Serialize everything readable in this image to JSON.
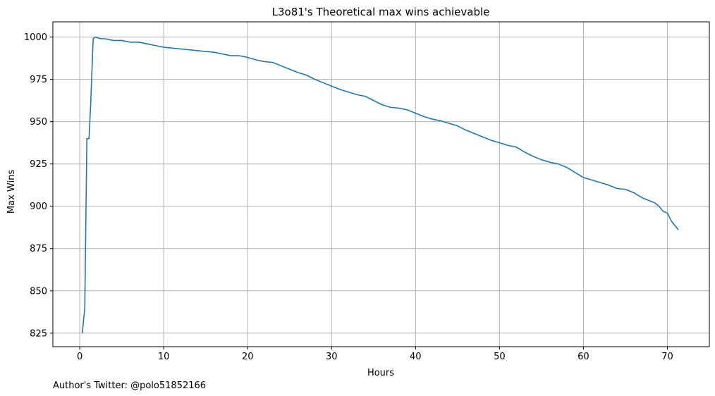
{
  "chart_data": {
    "type": "line",
    "title": "L3o81's Theoretical max wins achievable",
    "xlabel": "Hours",
    "ylabel": "Max Wins",
    "xlim": [
      -3.2,
      75.0
    ],
    "ylim": [
      817,
      1009
    ],
    "xticks": [
      0,
      10,
      20,
      30,
      40,
      50,
      60,
      70
    ],
    "yticks": [
      825,
      850,
      875,
      900,
      925,
      950,
      975,
      1000
    ],
    "grid": true,
    "line_color": "#1f77b4",
    "series": [
      {
        "x": [
          0.3,
          0.6,
          0.85,
          1.1,
          1.3,
          1.6,
          1.8,
          2.5,
          3,
          3.5,
          4,
          5,
          6,
          7,
          8,
          9,
          10,
          11,
          12,
          13,
          14,
          15,
          16,
          17,
          18,
          19,
          20,
          21,
          22,
          23,
          24,
          25,
          26,
          27,
          28,
          29,
          30,
          31,
          32,
          33,
          34,
          35,
          36,
          37,
          38,
          39,
          40,
          41,
          42,
          43,
          44,
          45,
          46,
          47,
          48,
          49,
          50,
          51,
          52,
          53,
          54,
          55,
          56,
          57,
          58,
          59,
          60,
          61,
          62,
          63,
          64,
          65,
          66,
          67,
          68,
          68.5,
          69,
          69.5,
          70,
          70.5,
          71,
          71.3
        ],
        "y": [
          825,
          840,
          940,
          940,
          960,
          999,
          1000,
          999,
          999,
          998.5,
          998,
          998,
          997,
          997,
          996,
          995,
          994,
          993.5,
          993,
          992.5,
          992,
          991.5,
          991,
          990,
          989,
          989,
          988,
          986.5,
          985.5,
          985,
          983,
          981,
          979,
          977.5,
          975,
          973,
          971,
          969,
          967.5,
          966,
          965,
          962.5,
          960,
          958.5,
          958,
          957,
          955,
          953,
          951.5,
          950.5,
          949,
          947.5,
          945,
          943,
          941,
          939,
          937.5,
          936,
          935,
          932,
          929.5,
          927.5,
          926,
          925,
          923,
          920,
          917,
          915.5,
          914,
          912.5,
          910.5,
          910,
          908,
          905,
          903,
          902,
          900,
          897,
          896,
          891,
          888,
          886
        ]
      }
    ]
  },
  "footer": {
    "credit": "Author's Twitter: @polo51852166"
  }
}
